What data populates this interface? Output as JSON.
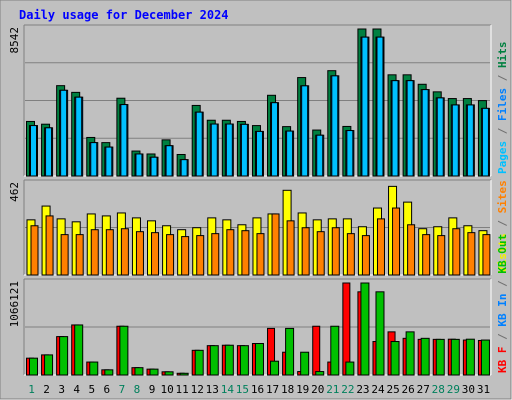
{
  "chart_data": {
    "type": "bar",
    "title": "Daily usage for December 2024",
    "days": [
      "1",
      "2",
      "3",
      "4",
      "5",
      "6",
      "7",
      "8",
      "9",
      "10",
      "11",
      "12",
      "13",
      "14",
      "15",
      "16",
      "17",
      "18",
      "19",
      "20",
      "21",
      "22",
      "23",
      "24",
      "25",
      "26",
      "27",
      "28",
      "29",
      "30",
      "31"
    ],
    "weekend_days": [
      "1",
      "7",
      "8",
      "14",
      "15",
      "21",
      "22",
      "28",
      "29"
    ],
    "panels": [
      {
        "id": "hits",
        "scale_label": "8542",
        "ymax": 8542,
        "legend": [
          {
            "text": "Pages",
            "color": "#00c0ff"
          },
          {
            "text": " / ",
            "color": "#707070"
          },
          {
            "text": "Files",
            "color": "#0080ff"
          },
          {
            "text": " / ",
            "color": "#707070"
          },
          {
            "text": "Hits",
            "color": "#008040"
          }
        ],
        "series": [
          {
            "name": "Hits",
            "color": "#008040",
            "values": [
              3170,
              3010,
              5250,
              4860,
              2240,
              1940,
              4520,
              1450,
              1280,
              2100,
              1250,
              4100,
              3240,
              3240,
              3170,
              2930,
              4690,
              2870,
              5720,
              2670,
              6120,
              2880,
              8542,
              8542,
              5880,
              5880,
              5330,
              4890,
              4500,
              4500,
              4380
            ]
          },
          {
            "name": "Files",
            "color": "#0080ff",
            "values": [
              2930,
              2800,
              4980,
              4580,
              1940,
              1680,
              4150,
              1280,
              1090,
              1760,
              950,
              3710,
              3020,
              3020,
              3000,
              2590,
              4260,
              2610,
              5240,
              2370,
              5820,
              2640,
              8070,
              8070,
              5540,
              5540,
              5020,
              4540,
              4130,
              4130,
              3930
            ]
          },
          {
            "name": "Pages",
            "color": "#00c0ff",
            "values": [
              2930,
              2800,
              4980,
              4580,
              1940,
              1680,
              4150,
              1280,
              1090,
              1760,
              950,
              3710,
              3020,
              3020,
              3000,
              2590,
              4260,
              2610,
              5240,
              2370,
              5820,
              2640,
              8070,
              8070,
              5540,
              5540,
              5020,
              4540,
              4130,
              4130,
              3930
            ]
          }
        ]
      },
      {
        "id": "visits",
        "scale_label": "462",
        "ymax": 462,
        "legend": [
          {
            "text": "Visits",
            "color": "#f0f000"
          },
          {
            "text": " / ",
            "color": "#707070"
          },
          {
            "text": "Sites",
            "color": "#ff8000"
          }
        ],
        "series": [
          {
            "name": "Visits",
            "color": "#ffff00",
            "values": [
              280,
              350,
              285,
              270,
              310,
              300,
              315,
              290,
              275,
              250,
              230,
              240,
              290,
              280,
              255,
              290,
              310,
              430,
              315,
              280,
              285,
              285,
              245,
              340,
              450,
              370,
              235,
              245,
              290,
              250,
              225
            ]
          },
          {
            "name": "Sites",
            "color": "#ff8000",
            "values": [
              250,
              300,
              205,
              205,
              230,
              230,
              235,
              220,
              215,
              205,
              195,
              200,
              210,
              230,
              225,
              210,
              310,
              275,
              240,
              220,
              240,
              210,
              200,
              285,
              340,
              255,
              205,
              200,
              235,
              215,
              205
            ]
          }
        ]
      },
      {
        "id": "kbytes",
        "scale_label": "1066121",
        "ymax": 1066121,
        "legend": [
          {
            "text": "KB F",
            "color": "#ff0000"
          },
          {
            "text": " / ",
            "color": "#707070"
          },
          {
            "text": "KB In",
            "color": "#0080ff"
          },
          {
            "text": " / ",
            "color": "#707070"
          },
          {
            "text": "KB Out",
            "color": "#00c000"
          }
        ],
        "series": [
          {
            "name": "KB F",
            "color": "#ff0000",
            "values": [
              195000,
              233000,
              445000,
              580000,
              150000,
              60000,
              565000,
              85000,
              68000,
              37000,
              20000,
              286000,
              340000,
              345000,
              340000,
              365000,
              540000,
              264000,
              40000,
              565000,
              150000,
              1066121,
              964000,
              388000,
              500000,
              425000,
              413000,
              413000,
              415000,
              405000,
              400000
            ]
          },
          {
            "name": "KB Out",
            "color": "#00c000",
            "values": [
              195000,
              233000,
              445000,
              580000,
              150000,
              60000,
              565000,
              85000,
              68000,
              37000,
              20000,
              286000,
              340000,
              345000,
              340000,
              365000,
              160000,
              540000,
              264000,
              40000,
              565000,
              150000,
              1066121,
              964000,
              388000,
              500000,
              425000,
              413000,
              413000,
              415000,
              405000
            ]
          }
        ]
      }
    ]
  }
}
